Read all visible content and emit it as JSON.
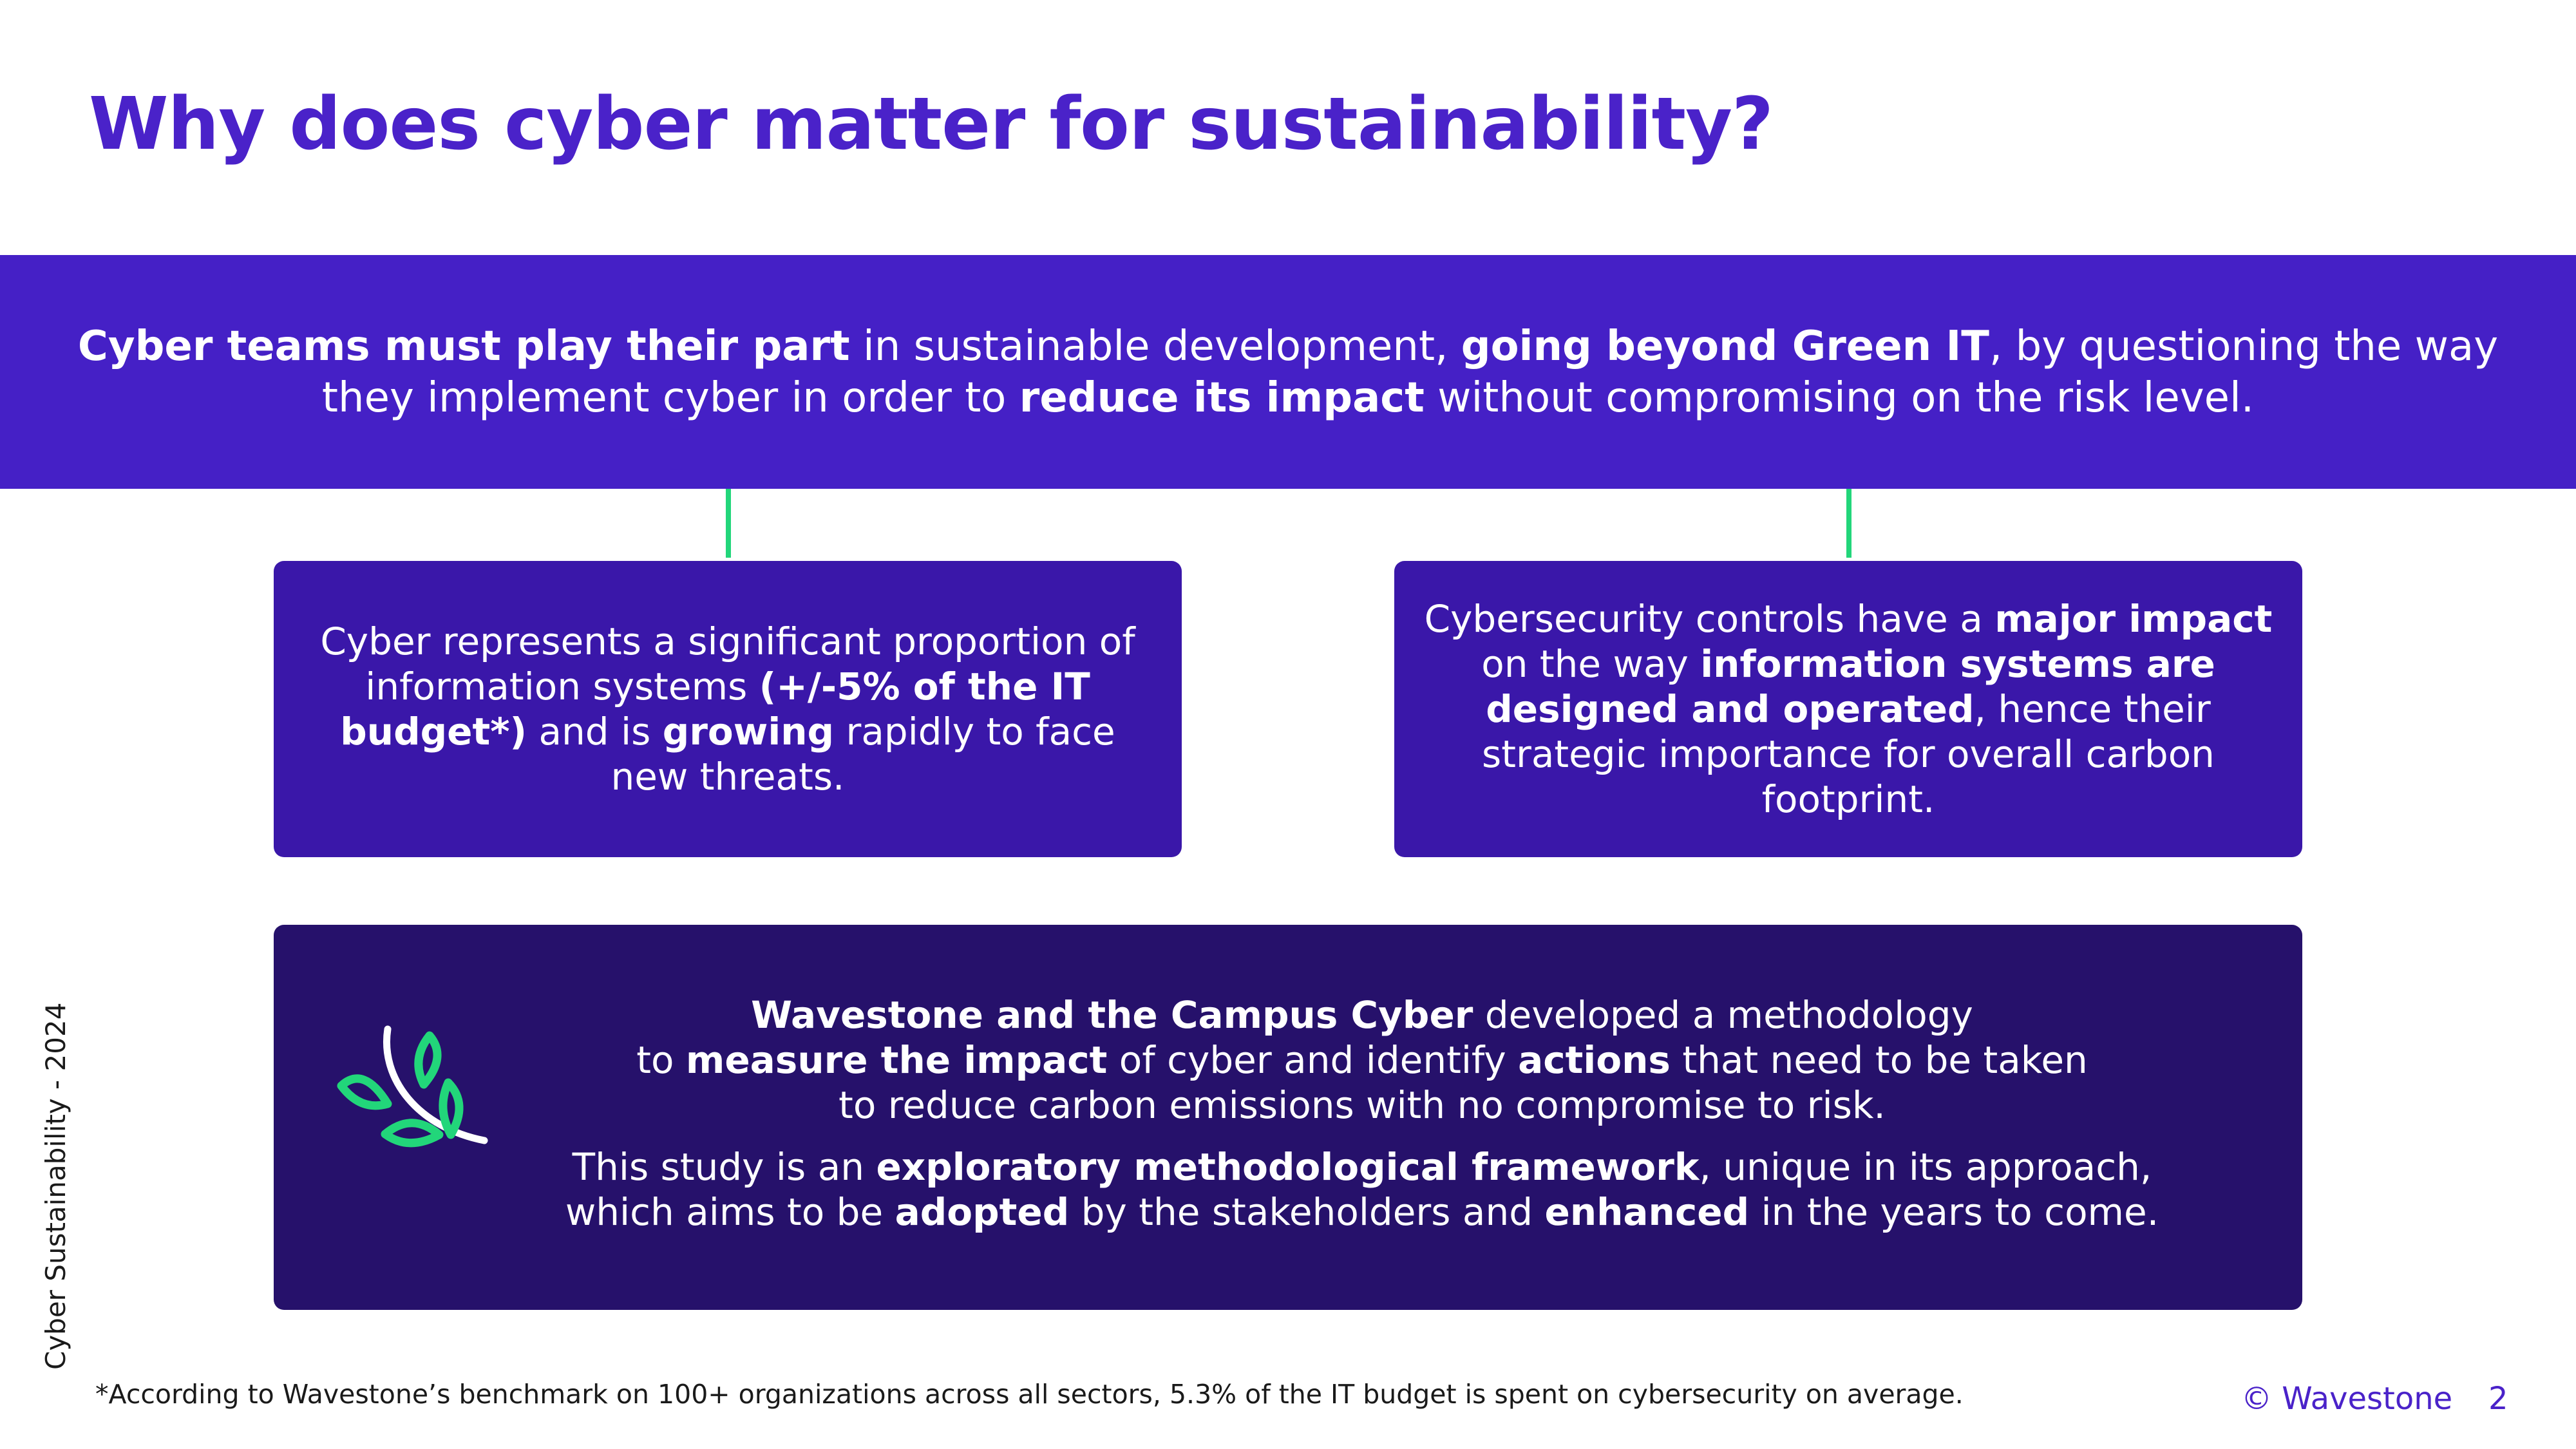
{
  "title": "Why does cyber matter for sustainability?",
  "banner": {
    "b1": "Cyber teams must play their part",
    "t1": " in sustainable development, ",
    "b2": "going beyond Green IT",
    "t2": ", by questioning the way they implement cyber in order to ",
    "b3": "reduce its impact",
    "t3": " without compromising on the risk level."
  },
  "card_left": {
    "t1": "Cyber represents a significant proportion of information systems ",
    "b1": "(+/-5% of the IT budget*)",
    "t2": " and is ",
    "b2": "growing",
    "t3": " rapidly to face new threats."
  },
  "card_right": {
    "t1": "Cybersecurity controls have a ",
    "b1": "major impact",
    "t2": " on the way ",
    "b2": "information systems are designed and operated",
    "t3": ", hence their strategic importance for overall carbon footprint."
  },
  "card_bottom": {
    "line1_b": "Wavestone and the Campus Cyber",
    "line1_t": " developed a methodology",
    "line2_t1": "to ",
    "line2_b1": "measure the impact",
    "line2_t2": " of cyber and identify ",
    "line2_b2": "actions",
    "line2_t3": " that need to be taken",
    "line3": "to reduce carbon emissions with no compromise to risk.",
    "p2_t1": "This study is an ",
    "p2_b1": "exploratory methodological framework",
    "p2_t2": ", unique in its approach,",
    "p2_t3": "which aims to be ",
    "p2_b2": "adopted",
    "p2_t4": " by the stakeholders and ",
    "p2_b3": "enhanced",
    "p2_t5": " in the years to come."
  },
  "side_label": "Cyber Sustainability - 2024",
  "footnote": "*According to Wavestone’s benchmark on 100+ organizations across all sectors, 5.3% of the IT budget is spent on cybersecurity on average.",
  "copyright": "© Wavestone",
  "page_number": "2",
  "colors": {
    "title": "#4a22c9",
    "banner": "#4520c6",
    "card": "#3a17a9",
    "card_dark": "#26116b",
    "accent_green": "#22d67a"
  },
  "icons": {
    "leaf": "leaf-icon"
  }
}
